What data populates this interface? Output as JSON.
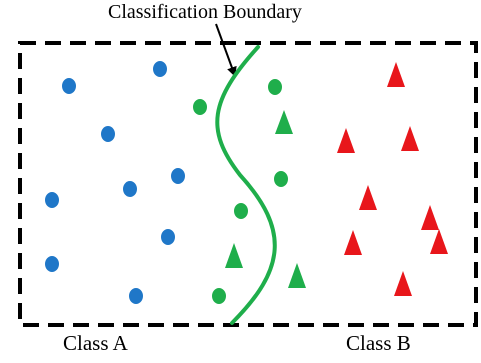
{
  "labels": {
    "boundary": "Classification Boundary",
    "class_a": "Class A",
    "class_b": "Class B"
  },
  "colors": {
    "blue": "#1f77c8",
    "green": "#1fae4b",
    "red": "#e8161b",
    "frame": "#000000"
  }
}
